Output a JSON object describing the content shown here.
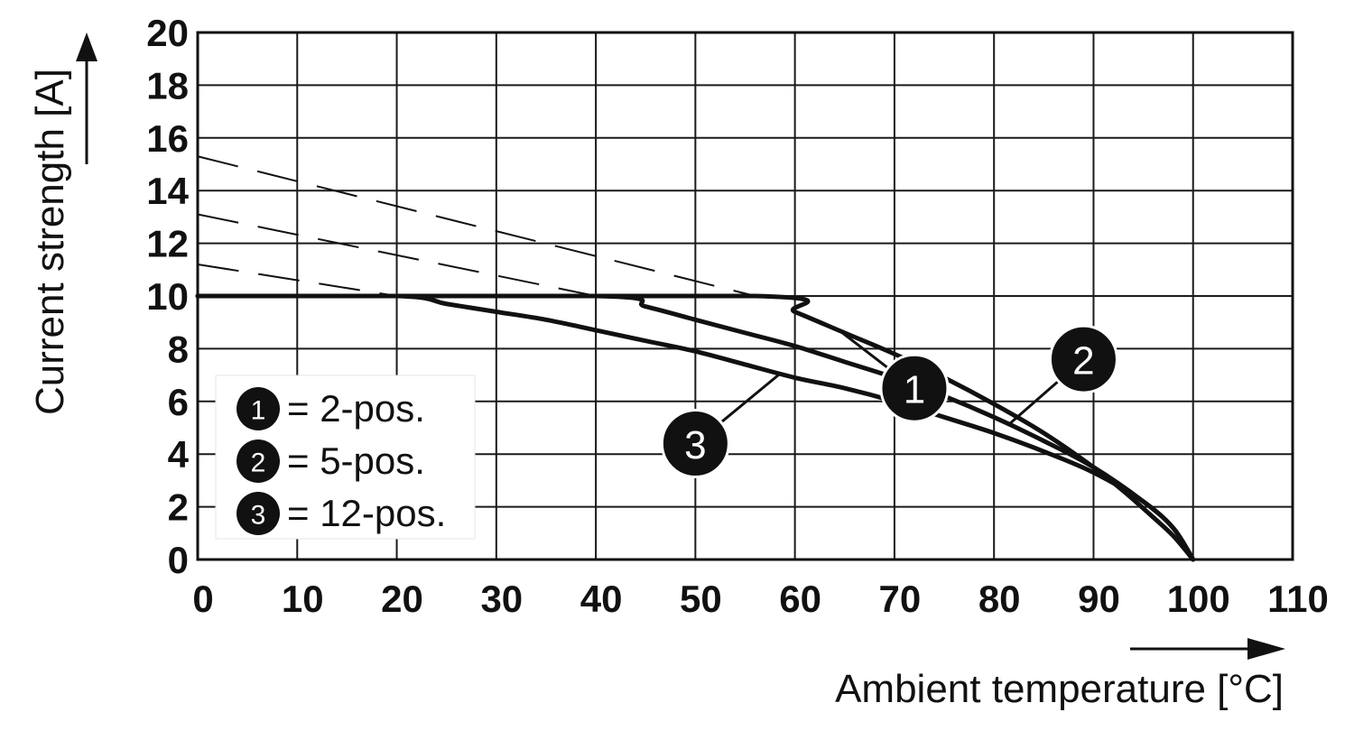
{
  "chart_data": {
    "type": "line",
    "title": "",
    "xlabel": "Ambient temperature [°C]",
    "ylabel": "Current strength [A]",
    "xlim": [
      0,
      110
    ],
    "ylim": [
      0,
      20
    ],
    "xticks": [
      "0",
      "10",
      "20",
      "30",
      "40",
      "50",
      "60",
      "70",
      "80",
      "90",
      "100",
      "110"
    ],
    "yticks": [
      "0",
      "2",
      "4",
      "6",
      "8",
      "10",
      "12",
      "14",
      "16",
      "18",
      "20"
    ],
    "grid": true,
    "legend_position": "bottom-left",
    "series": [
      {
        "id": "1",
        "name": "2-pos.",
        "x": [
          0,
          56,
          60,
          65,
          70,
          75,
          80,
          85,
          90,
          93,
          96,
          98,
          100
        ],
        "y": [
          10,
          10,
          9.4,
          8.6,
          7.8,
          6.9,
          5.9,
          4.8,
          3.5,
          2.6,
          1.6,
          0.9,
          0
        ],
        "derating_extension": {
          "x": [
            0,
            56
          ],
          "y": [
            15.3,
            10
          ]
        }
      },
      {
        "id": "2",
        "name": "5-pos.",
        "x": [
          0,
          40,
          45,
          50,
          55,
          60,
          65,
          70,
          75,
          80,
          85,
          90,
          95,
          98,
          100
        ],
        "y": [
          10,
          10,
          9.6,
          9.1,
          8.6,
          8.1,
          7.5,
          6.9,
          6.2,
          5.4,
          4.5,
          3.5,
          2.2,
          1.2,
          0
        ],
        "derating_extension": {
          "x": [
            0,
            40
          ],
          "y": [
            13.1,
            10
          ]
        }
      },
      {
        "id": "3",
        "name": "12-pos.",
        "x": [
          0,
          20,
          25,
          30,
          35,
          40,
          45,
          50,
          55,
          60,
          65,
          70,
          75,
          80,
          85,
          90,
          95,
          98,
          100
        ],
        "y": [
          10,
          10,
          9.7,
          9.4,
          9.1,
          8.7,
          8.3,
          7.9,
          7.4,
          6.9,
          6.5,
          6.0,
          5.4,
          4.8,
          4.1,
          3.3,
          2.2,
          1.2,
          0
        ],
        "derating_extension": {
          "x": [
            0,
            20
          ],
          "y": [
            11.2,
            10
          ]
        }
      }
    ],
    "annotations": [
      {
        "label": "1",
        "series": "1",
        "at_x": 72,
        "at_y": 6.5
      },
      {
        "label": "2",
        "series": "2",
        "at_x": 89,
        "at_y": 7.6
      },
      {
        "label": "3",
        "series": "3",
        "at_x": 50,
        "at_y": 4.4
      }
    ],
    "legend": [
      {
        "marker": "1",
        "text": "= 2-pos."
      },
      {
        "marker": "2",
        "text": "= 5-pos."
      },
      {
        "marker": "3",
        "text": "= 12-pos."
      }
    ]
  },
  "colors": {
    "ink": "#111111",
    "grid": "#1a1a1a",
    "background": "#ffffff",
    "marker_fill": "#111111",
    "marker_text": "#ffffff"
  }
}
